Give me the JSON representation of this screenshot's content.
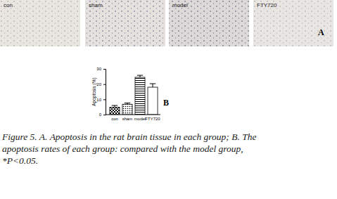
{
  "chart_data": {
    "type": "bar",
    "categories": [
      "con",
      "sham",
      "model",
      "FTY720"
    ],
    "values": [
      4.8,
      6.8,
      24.5,
      18.0
    ],
    "errors": [
      1.2,
      0.8,
      1.3,
      2.3
    ],
    "ylabel": "Apoptosis (%)",
    "ylim": [
      0,
      30
    ],
    "yticks": [
      0,
      10,
      20,
      30
    ],
    "color": "#000000"
  },
  "figure": {
    "images": [
      "con",
      "sham",
      "model",
      "FTY720"
    ],
    "panel_labels": [
      "A",
      "B"
    ],
    "caption": [
      "Figure 5. A. Apoptosis in the rat brain tissue in each group; B. The",
      "apoptosis rates of each group: compared with the model group,",
      "*P<0.05."
    ]
  }
}
